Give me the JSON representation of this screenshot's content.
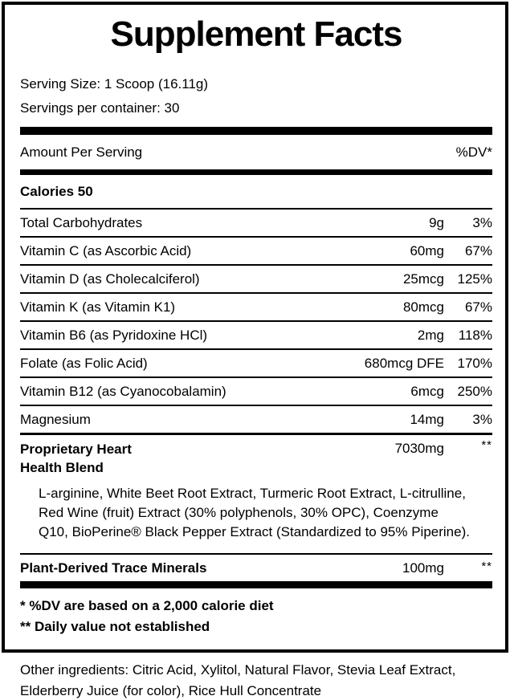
{
  "label": {
    "title": "Supplement Facts",
    "serving_size": "Serving Size: 1 Scoop (16.11g)",
    "servings_per_container": "Servings per container: 30",
    "header": {
      "amount_per_serving": "Amount Per Serving",
      "dv": "%DV*"
    },
    "calories": "Calories 50",
    "rows": [
      {
        "name": "Total Carbohydrates",
        "amount": "9g",
        "dv": "3%"
      },
      {
        "name": "Vitamin C (as Ascorbic Acid)",
        "amount": "60mg",
        "dv": "67%"
      },
      {
        "name": "Vitamin D (as Cholecalciferol)",
        "amount": "25mcg",
        "dv": "125%"
      },
      {
        "name": "Vitamin K (as Vitamin K1)",
        "amount": "80mcg",
        "dv": "67%"
      },
      {
        "name": "Vitamin B6 (as Pyridoxine HCl)",
        "amount": "2mg",
        "dv": "118%"
      },
      {
        "name": "Folate (as Folic Acid)",
        "amount": "680mcg DFE",
        "dv": "170%"
      },
      {
        "name": "Vitamin B12 (as Cyanocobalamin)",
        "amount": "6mcg",
        "dv": "250%"
      },
      {
        "name": "Magnesium",
        "amount": "14mg",
        "dv": "3%"
      }
    ],
    "proprietary_blend": {
      "name": "Proprietary Heart Health Blend",
      "amount": "7030mg",
      "dv": "**",
      "description": "L-arginine, White Beet Root Extract, Turmeric Root Extract, L-citrulline, Red Wine (fruit) Extract (30% polyphenols, 30% OPC), Coenzyme Q10, BioPerine® Black Pepper Extract (Standardized to 95% Piperine)."
    },
    "trace_minerals": {
      "name": "Plant-Derived Trace Minerals",
      "amount": "100mg",
      "dv": "**"
    },
    "footnotes": [
      "* %DV are based on a 2,000 calorie diet",
      "** Daily value not established"
    ]
  },
  "other_ingredients": "Other ingredients: Citric Acid, Xylitol, Natural Flavor, Stevia Leaf Extract, Elderberry Juice (for color), Rice Hull Concentrate"
}
